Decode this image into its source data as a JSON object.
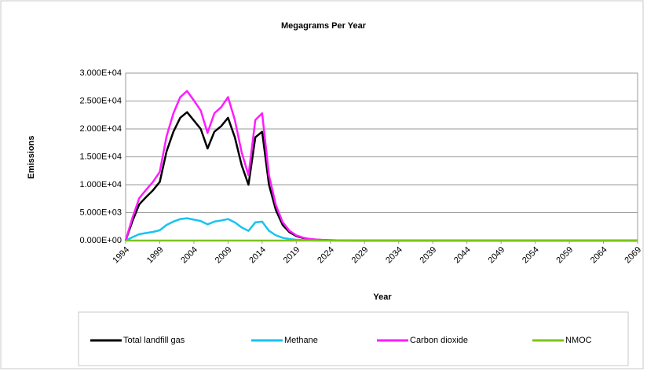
{
  "chart_data": {
    "type": "line",
    "title": "Megagrams Per Year",
    "xlabel": "Year",
    "ylabel": "Emissions",
    "x": [
      1994,
      1995,
      1996,
      1997,
      1998,
      1999,
      2000,
      2001,
      2002,
      2003,
      2004,
      2005,
      2006,
      2007,
      2008,
      2009,
      2010,
      2011,
      2012,
      2013,
      2014,
      2015,
      2016,
      2017,
      2018,
      2019,
      2020,
      2021,
      2022,
      2023,
      2024,
      2025,
      2026,
      2027,
      2028,
      2069
    ],
    "series": [
      {
        "name": "Total landfill gas",
        "color": "#000000",
        "values": [
          0,
          3500,
          6500,
          7800,
          9000,
          10500,
          16000,
          19500,
          22000,
          23000,
          21500,
          20000,
          16500,
          19500,
          20500,
          22000,
          18500,
          13500,
          10000,
          18500,
          19500,
          10000,
          5500,
          2800,
          1500,
          800,
          450,
          250,
          150,
          90,
          50,
          30,
          20,
          10,
          5,
          0
        ]
      },
      {
        "name": "Methane",
        "color": "#19c3f0",
        "values": [
          0,
          600,
          1150,
          1350,
          1550,
          1850,
          2800,
          3400,
          3850,
          4000,
          3750,
          3500,
          2900,
          3400,
          3600,
          3850,
          3250,
          2350,
          1750,
          3250,
          3400,
          1750,
          950,
          500,
          260,
          140,
          80,
          45,
          25,
          15,
          9,
          5,
          3,
          2,
          1,
          0
        ]
      },
      {
        "name": "Carbon dioxide",
        "color": "#ff1cff",
        "values": [
          0,
          4100,
          7600,
          9100,
          10500,
          12300,
          18700,
          22800,
          25700,
          26800,
          25100,
          23300,
          19300,
          22800,
          23900,
          25700,
          21600,
          15800,
          11700,
          21600,
          22800,
          11700,
          6400,
          3300,
          1750,
          930,
          520,
          290,
          175,
          105,
          60,
          35,
          23,
          12,
          6,
          0
        ]
      },
      {
        "name": "NMOC",
        "color": "#7fc31c",
        "values": [
          0,
          0,
          0,
          0,
          0,
          0,
          0,
          0,
          0,
          0,
          0,
          0,
          0,
          0,
          0,
          0,
          0,
          0,
          0,
          0,
          0,
          0,
          0,
          0,
          0,
          0,
          0,
          0,
          0,
          0,
          0,
          0,
          0,
          0,
          0,
          0
        ]
      }
    ],
    "xlim": [
      1994,
      2069
    ],
    "xticks": [
      1994,
      1999,
      2004,
      2009,
      2014,
      2019,
      2024,
      2029,
      2034,
      2039,
      2044,
      2049,
      2054,
      2059,
      2064,
      2069
    ],
    "ylim": [
      0,
      30000
    ],
    "yticks": [
      {
        "value": 0,
        "label": "0.000E+00"
      },
      {
        "value": 5000,
        "label": "5.000E+03"
      },
      {
        "value": 10000,
        "label": "1.000E+04"
      },
      {
        "value": 15000,
        "label": "1.500E+04"
      },
      {
        "value": 20000,
        "label": "2.000E+04"
      },
      {
        "value": 25000,
        "label": "2.500E+04"
      },
      {
        "value": 30000,
        "label": "3.000E+04"
      }
    ],
    "grid": true
  }
}
